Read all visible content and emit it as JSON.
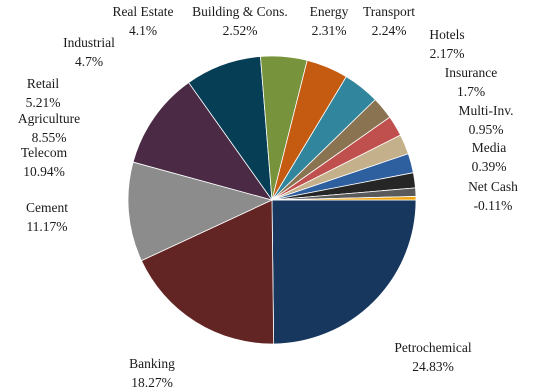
{
  "chart_data": {
    "type": "pie",
    "title": "",
    "start": "Petrochemical begins at 3 o'clock, clockwise",
    "slices": [
      {
        "label": "Petrochemical",
        "value": 24.83,
        "value_label": "24.83%",
        "color": "#17375e"
      },
      {
        "label": "Banking",
        "value": 18.27,
        "value_label": "18.27%",
        "color": "#632523"
      },
      {
        "label": "Cement",
        "value": 11.17,
        "value_label": "11.17%",
        "color": "#8c8c8c"
      },
      {
        "label": "Telecom",
        "value": 10.94,
        "value_label": "10.94%",
        "color": "#4a2a44"
      },
      {
        "label": "Agriculture",
        "value": 8.55,
        "value_label": "8.55%",
        "color": "#063f55"
      },
      {
        "label": "Retail",
        "value": 5.21,
        "value_label": "5.21%",
        "color": "#77933c"
      },
      {
        "label": "Industrial",
        "value": 4.7,
        "value_label": "4.7%",
        "color": "#c55a11"
      },
      {
        "label": "Real Estate",
        "value": 4.1,
        "value_label": "4.1%",
        "color": "#31859c"
      },
      {
        "label": "Building & Cons.",
        "value": 2.52,
        "value_label": "2.52%",
        "color": "#8a7350"
      },
      {
        "label": "Energy",
        "value": 2.31,
        "value_label": "2.31%",
        "color": "#c0504d"
      },
      {
        "label": "Transport",
        "value": 2.24,
        "value_label": "2.24%",
        "color": "#c4b08a"
      },
      {
        "label": "Hotels",
        "value": 2.17,
        "value_label": "2.17%",
        "color": "#2e5f9e"
      },
      {
        "label": "Insurance",
        "value": 1.7,
        "value_label": "1.7%",
        "color": "#262626"
      },
      {
        "label": "Multi-Inv.",
        "value": 0.95,
        "value_label": "0.95%",
        "color": "#5a5a5a"
      },
      {
        "label": "Media",
        "value": 0.39,
        "value_label": "0.39%",
        "color": "#f0a30a"
      },
      {
        "label": "Net Cash",
        "value": -0.11,
        "value_label": "-0.11%",
        "color": "#ffffff"
      }
    ]
  }
}
